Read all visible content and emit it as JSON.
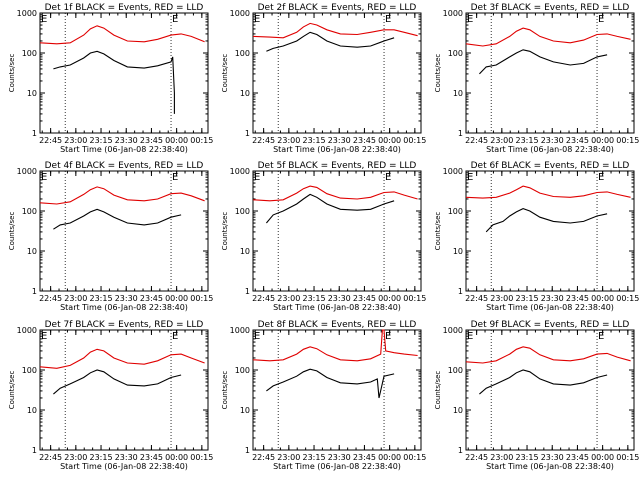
{
  "chart_data": {
    "type": "line",
    "title_template": "Det {n}f BLACK = Events, RED = LLD",
    "detectors": [
      "1",
      "2",
      "3",
      "4",
      "5",
      "6",
      "7",
      "8",
      "9"
    ],
    "xlabel": "Start Time (06-Jan-08 22:38:40)",
    "ylabel": "Counts/sec",
    "x_unit": "minutes after 22:38:40",
    "xlim": [
      0,
      100
    ],
    "x_ticks": [
      {
        "label": "22:45",
        "value": 6.33
      },
      {
        "label": "23:00",
        "value": 21.33
      },
      {
        "label": "23:15",
        "value": 36.33
      },
      {
        "label": "23:30",
        "value": 51.33
      },
      {
        "label": "23:45",
        "value": 66.33
      },
      {
        "label": "00:00",
        "value": 81.33
      },
      {
        "label": "00:15",
        "value": 96.33
      }
    ],
    "y_scale": "log",
    "ylim": [
      1,
      1000
    ],
    "y_ticks": [
      {
        "label": "1",
        "value": 1
      },
      {
        "label": "10",
        "value": 10
      },
      {
        "label": "100",
        "value": 100
      },
      {
        "label": "1000",
        "value": 1000
      }
    ],
    "markers": [
      {
        "label": "E",
        "x": 0
      },
      {
        "label": "E",
        "x": 78
      }
    ],
    "vlines": [
      15,
      78
    ],
    "colors": {
      "events": "#000000",
      "lld": "#e00000",
      "axis": "#000000"
    },
    "panels": [
      {
        "id": "det-1f",
        "lld": [
          [
            0,
            180
          ],
          [
            10,
            170
          ],
          [
            18,
            180
          ],
          [
            26,
            280
          ],
          [
            30,
            400
          ],
          [
            34,
            480
          ],
          [
            38,
            420
          ],
          [
            44,
            280
          ],
          [
            52,
            200
          ],
          [
            62,
            190
          ],
          [
            70,
            220
          ],
          [
            78,
            280
          ],
          [
            84,
            300
          ],
          [
            90,
            260
          ],
          [
            98,
            190
          ]
        ],
        "events": [
          [
            8,
            40
          ],
          [
            12,
            45
          ],
          [
            18,
            50
          ],
          [
            26,
            75
          ],
          [
            30,
            100
          ],
          [
            34,
            110
          ],
          [
            38,
            95
          ],
          [
            44,
            65
          ],
          [
            52,
            45
          ],
          [
            62,
            42
          ],
          [
            70,
            48
          ],
          [
            78,
            60
          ],
          [
            79,
            80
          ],
          [
            80,
            10
          ],
          [
            80,
            3
          ]
        ]
      },
      {
        "id": "det-2f",
        "lld": [
          [
            0,
            260
          ],
          [
            10,
            250
          ],
          [
            18,
            240
          ],
          [
            26,
            330
          ],
          [
            30,
            450
          ],
          [
            34,
            550
          ],
          [
            38,
            500
          ],
          [
            44,
            380
          ],
          [
            52,
            300
          ],
          [
            62,
            290
          ],
          [
            70,
            330
          ],
          [
            78,
            380
          ],
          [
            84,
            380
          ],
          [
            90,
            330
          ],
          [
            98,
            270
          ]
        ],
        "events": [
          [
            8,
            110
          ],
          [
            12,
            130
          ],
          [
            18,
            150
          ],
          [
            26,
            200
          ],
          [
            30,
            260
          ],
          [
            34,
            330
          ],
          [
            38,
            290
          ],
          [
            44,
            200
          ],
          [
            52,
            150
          ],
          [
            62,
            140
          ],
          [
            70,
            150
          ],
          [
            78,
            200
          ],
          [
            84,
            240
          ]
        ]
      },
      {
        "id": "det-3f",
        "lld": [
          [
            0,
            170
          ],
          [
            10,
            150
          ],
          [
            18,
            170
          ],
          [
            26,
            260
          ],
          [
            30,
            350
          ],
          [
            34,
            420
          ],
          [
            38,
            380
          ],
          [
            44,
            260
          ],
          [
            52,
            200
          ],
          [
            62,
            180
          ],
          [
            70,
            210
          ],
          [
            78,
            290
          ],
          [
            84,
            300
          ],
          [
            90,
            260
          ],
          [
            98,
            220
          ]
        ],
        "events": [
          [
            8,
            30
          ],
          [
            12,
            45
          ],
          [
            18,
            50
          ],
          [
            26,
            80
          ],
          [
            30,
            100
          ],
          [
            34,
            120
          ],
          [
            38,
            110
          ],
          [
            44,
            80
          ],
          [
            52,
            60
          ],
          [
            62,
            50
          ],
          [
            70,
            55
          ],
          [
            78,
            80
          ],
          [
            84,
            90
          ]
        ]
      },
      {
        "id": "det-4f",
        "lld": [
          [
            0,
            160
          ],
          [
            10,
            150
          ],
          [
            18,
            170
          ],
          [
            26,
            260
          ],
          [
            30,
            340
          ],
          [
            34,
            400
          ],
          [
            38,
            360
          ],
          [
            44,
            250
          ],
          [
            52,
            190
          ],
          [
            62,
            180
          ],
          [
            70,
            200
          ],
          [
            78,
            270
          ],
          [
            84,
            280
          ],
          [
            90,
            240
          ],
          [
            98,
            180
          ]
        ],
        "events": [
          [
            8,
            35
          ],
          [
            12,
            45
          ],
          [
            18,
            50
          ],
          [
            26,
            75
          ],
          [
            30,
            95
          ],
          [
            34,
            110
          ],
          [
            38,
            95
          ],
          [
            44,
            70
          ],
          [
            52,
            50
          ],
          [
            62,
            45
          ],
          [
            70,
            50
          ],
          [
            78,
            70
          ],
          [
            84,
            80
          ]
        ]
      },
      {
        "id": "det-5f",
        "lld": [
          [
            0,
            190
          ],
          [
            10,
            180
          ],
          [
            18,
            190
          ],
          [
            26,
            280
          ],
          [
            30,
            360
          ],
          [
            34,
            420
          ],
          [
            38,
            390
          ],
          [
            44,
            270
          ],
          [
            52,
            210
          ],
          [
            62,
            200
          ],
          [
            70,
            220
          ],
          [
            78,
            290
          ],
          [
            84,
            300
          ],
          [
            90,
            250
          ],
          [
            98,
            200
          ]
        ],
        "events": [
          [
            8,
            50
          ],
          [
            12,
            80
          ],
          [
            18,
            100
          ],
          [
            26,
            150
          ],
          [
            30,
            200
          ],
          [
            34,
            260
          ],
          [
            38,
            220
          ],
          [
            44,
            150
          ],
          [
            52,
            110
          ],
          [
            62,
            105
          ],
          [
            70,
            110
          ],
          [
            78,
            150
          ],
          [
            84,
            180
          ]
        ]
      },
      {
        "id": "det-6f",
        "lld": [
          [
            0,
            220
          ],
          [
            10,
            210
          ],
          [
            18,
            220
          ],
          [
            26,
            280
          ],
          [
            30,
            340
          ],
          [
            34,
            420
          ],
          [
            38,
            380
          ],
          [
            44,
            280
          ],
          [
            52,
            230
          ],
          [
            62,
            220
          ],
          [
            70,
            240
          ],
          [
            78,
            290
          ],
          [
            84,
            300
          ],
          [
            90,
            260
          ],
          [
            98,
            220
          ]
        ],
        "events": [
          [
            12,
            30
          ],
          [
            16,
            45
          ],
          [
            22,
            55
          ],
          [
            26,
            75
          ],
          [
            30,
            95
          ],
          [
            34,
            115
          ],
          [
            38,
            100
          ],
          [
            44,
            70
          ],
          [
            52,
            55
          ],
          [
            62,
            50
          ],
          [
            70,
            55
          ],
          [
            78,
            75
          ],
          [
            84,
            85
          ]
        ]
      },
      {
        "id": "det-7f",
        "lld": [
          [
            0,
            120
          ],
          [
            10,
            110
          ],
          [
            18,
            130
          ],
          [
            26,
            200
          ],
          [
            30,
            280
          ],
          [
            34,
            330
          ],
          [
            38,
            300
          ],
          [
            44,
            200
          ],
          [
            52,
            150
          ],
          [
            62,
            140
          ],
          [
            70,
            170
          ],
          [
            78,
            240
          ],
          [
            84,
            250
          ],
          [
            90,
            200
          ],
          [
            98,
            150
          ]
        ],
        "events": [
          [
            8,
            25
          ],
          [
            12,
            35
          ],
          [
            18,
            45
          ],
          [
            26,
            65
          ],
          [
            30,
            85
          ],
          [
            34,
            100
          ],
          [
            38,
            90
          ],
          [
            44,
            60
          ],
          [
            52,
            42
          ],
          [
            62,
            40
          ],
          [
            70,
            45
          ],
          [
            78,
            65
          ],
          [
            84,
            75
          ]
        ]
      },
      {
        "id": "det-8f",
        "lld": [
          [
            0,
            180
          ],
          [
            10,
            170
          ],
          [
            18,
            180
          ],
          [
            26,
            250
          ],
          [
            30,
            330
          ],
          [
            34,
            380
          ],
          [
            38,
            340
          ],
          [
            44,
            240
          ],
          [
            52,
            180
          ],
          [
            62,
            170
          ],
          [
            70,
            190
          ],
          [
            76,
            250
          ],
          [
            77,
            1000
          ],
          [
            78,
            1000
          ],
          [
            79,
            300
          ],
          [
            84,
            270
          ],
          [
            90,
            250
          ],
          [
            98,
            230
          ]
        ],
        "events": [
          [
            8,
            30
          ],
          [
            12,
            40
          ],
          [
            18,
            50
          ],
          [
            26,
            70
          ],
          [
            30,
            90
          ],
          [
            34,
            105
          ],
          [
            38,
            95
          ],
          [
            44,
            65
          ],
          [
            52,
            48
          ],
          [
            62,
            45
          ],
          [
            70,
            50
          ],
          [
            74,
            60
          ],
          [
            75,
            20
          ],
          [
            78,
            70
          ],
          [
            84,
            80
          ]
        ]
      },
      {
        "id": "det-9f",
        "lld": [
          [
            0,
            160
          ],
          [
            10,
            150
          ],
          [
            18,
            170
          ],
          [
            26,
            250
          ],
          [
            30,
            330
          ],
          [
            34,
            380
          ],
          [
            38,
            350
          ],
          [
            44,
            240
          ],
          [
            52,
            180
          ],
          [
            62,
            170
          ],
          [
            70,
            190
          ],
          [
            78,
            250
          ],
          [
            84,
            260
          ],
          [
            90,
            210
          ],
          [
            98,
            170
          ]
        ],
        "events": [
          [
            8,
            25
          ],
          [
            12,
            35
          ],
          [
            18,
            45
          ],
          [
            26,
            65
          ],
          [
            30,
            85
          ],
          [
            34,
            100
          ],
          [
            38,
            90
          ],
          [
            44,
            60
          ],
          [
            52,
            45
          ],
          [
            62,
            42
          ],
          [
            70,
            48
          ],
          [
            78,
            65
          ],
          [
            84,
            75
          ]
        ]
      }
    ]
  }
}
